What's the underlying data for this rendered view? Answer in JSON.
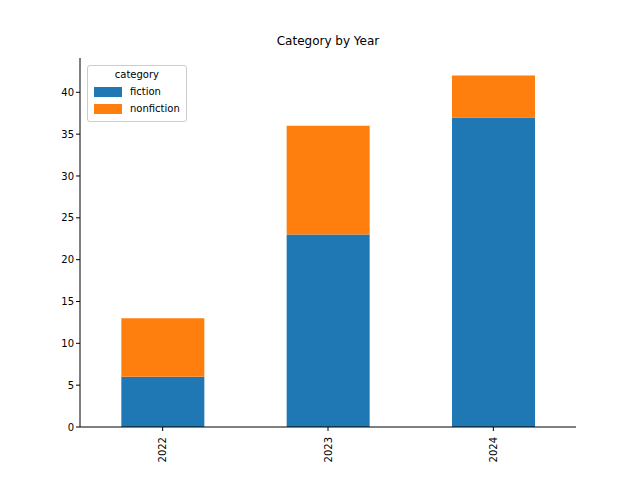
{
  "chart_data": {
    "type": "bar",
    "title": "Category by Year",
    "categories": [
      "2022",
      "2023",
      "2024"
    ],
    "series": [
      {
        "name": "fiction",
        "color": "#1f77b4",
        "values": [
          6,
          23,
          37
        ]
      },
      {
        "name": "nonfiction",
        "color": "#ff7f0e",
        "values": [
          7,
          13,
          5
        ]
      }
    ],
    "stacked": true,
    "ylim": [
      0,
      44.1
    ],
    "yticks": [
      0,
      5,
      10,
      15,
      20,
      25,
      30,
      35,
      40
    ],
    "legend": "upper left",
    "legend_title": "category",
    "grid": false
  }
}
